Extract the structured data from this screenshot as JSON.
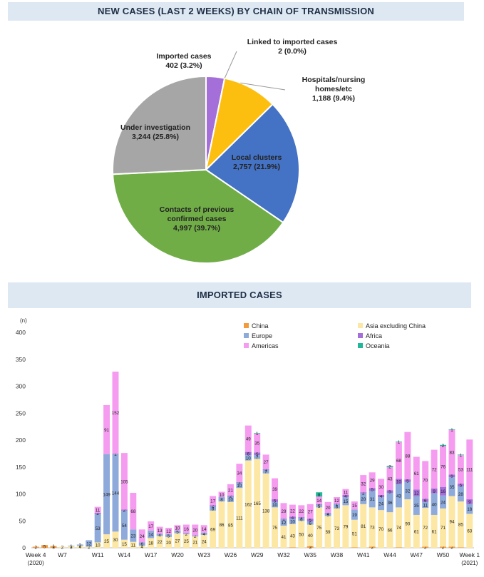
{
  "pie_title": "NEW CASES (LAST 2 WEEKS) BY CHAIN OF TRANSMISSION",
  "bar_title": "IMPORTED CASES",
  "pie_labels": {
    "imported": {
      "name": "Imported cases",
      "value": "402  (3.2%)"
    },
    "linked": {
      "name": "Linked to imported cases",
      "value": "2  (0.0%)"
    },
    "hospitals": {
      "name1": "Hospitals/nursing",
      "name2": "homes/etc",
      "value": "1,188  (9.4%)"
    },
    "local": {
      "name": "Local clusters",
      "value": "2,757  (21.9%)"
    },
    "contacts": {
      "name1": "Contacts of previous",
      "name2": "confirmed cases",
      "value": "4,997  (39.7%)"
    },
    "investigation": {
      "name": "Under investigation",
      "value": "3,244  (25.8%)"
    }
  },
  "chart_data": [
    {
      "type": "pie",
      "title": "NEW CASES (LAST 2 WEEKS) BY CHAIN OF TRANSMISSION",
      "slices": [
        {
          "label": "Imported cases",
          "value": 402,
          "percent": 3.2,
          "color": "#a46fd8"
        },
        {
          "label": "Linked to imported cases",
          "value": 2,
          "percent": 0.0,
          "color": "#a46fd8"
        },
        {
          "label": "Hospitals/nursing homes/etc",
          "value": 1188,
          "percent": 9.4,
          "color": "#fdbf0f"
        },
        {
          "label": "Local clusters",
          "value": 2757,
          "percent": 21.9,
          "color": "#4472c4"
        },
        {
          "label": "Contacts of previous confirmed cases",
          "value": 4997,
          "percent": 39.7,
          "color": "#70ad47"
        },
        {
          "label": "Under investigation",
          "value": 3244,
          "percent": 25.8,
          "color": "#a6a6a6"
        }
      ]
    },
    {
      "type": "bar",
      "stacked": true,
      "title": "IMPORTED CASES",
      "ylabel": "(n)",
      "ylim": [
        0,
        400
      ],
      "yticks": [
        0,
        50,
        100,
        150,
        200,
        250,
        300,
        350,
        400
      ],
      "x_tick_labels": [
        {
          "week": 4,
          "text": "Week 4",
          "sub": "(2020)"
        },
        {
          "week": 7,
          "text": "W7"
        },
        {
          "week": 11,
          "text": "W11"
        },
        {
          "week": 14,
          "text": "W14"
        },
        {
          "week": 17,
          "text": "W17"
        },
        {
          "week": 20,
          "text": "W20"
        },
        {
          "week": 23,
          "text": "W23"
        },
        {
          "week": 26,
          "text": "W26"
        },
        {
          "week": 29,
          "text": "W29"
        },
        {
          "week": 32,
          "text": "W32"
        },
        {
          "week": 35,
          "text": "W35"
        },
        {
          "week": 38,
          "text": "W38"
        },
        {
          "week": 41,
          "text": "W41"
        },
        {
          "week": 44,
          "text": "W44"
        },
        {
          "week": 47,
          "text": "W47"
        },
        {
          "week": 50,
          "text": "W50"
        },
        {
          "week": 53,
          "text": "Week 1",
          "sub": "(2021)"
        }
      ],
      "legend": [
        {
          "name": "China",
          "color": "#f39b3c"
        },
        {
          "name": "Asia excluding China",
          "color": "#fce8a4"
        },
        {
          "name": "Europe",
          "color": "#8eaadb"
        },
        {
          "name": "Africa",
          "color": "#a46fd8"
        },
        {
          "name": "Americas",
          "color": "#f59cf0"
        },
        {
          "name": "Oceania",
          "color": "#20b79a"
        }
      ],
      "legend_position": "top-right",
      "grid": false,
      "series_order": [
        "China",
        "Asia excluding China",
        "Europe",
        "Africa",
        "Americas",
        "Oceania"
      ],
      "weeks": [
        {
          "week": 4,
          "China": 2,
          "Asia excluding China": 0,
          "Europe": 0,
          "Africa": 0,
          "Americas": 0,
          "Oceania": 0
        },
        {
          "week": 5,
          "China": 5,
          "Asia excluding China": 0,
          "Europe": 0,
          "Africa": 0,
          "Americas": 0,
          "Oceania": 0
        },
        {
          "week": 6,
          "China": 3,
          "Asia excluding China": 1,
          "Europe": 0,
          "Africa": 0,
          "Americas": 0,
          "Oceania": 0
        },
        {
          "week": 7,
          "China": 0,
          "Asia excluding China": 2,
          "Europe": 0,
          "Africa": 0,
          "Americas": 0,
          "Oceania": 0
        },
        {
          "week": 8,
          "China": 0,
          "Asia excluding China": 3,
          "Europe": 1,
          "Africa": 0,
          "Americas": 0,
          "Oceania": 0
        },
        {
          "week": 9,
          "China": 0,
          "Asia excluding China": 4,
          "Europe": 2,
          "Africa": 0,
          "Americas": 0,
          "Oceania": 0
        },
        {
          "week": 10,
          "China": 0,
          "Asia excluding China": 2,
          "Europe": 12,
          "Africa": 0,
          "Americas": 0,
          "Oceania": 0
        },
        {
          "week": 11,
          "China": 0,
          "Asia excluding China": 10,
          "Europe": 53,
          "Africa": 2,
          "Americas": 11,
          "Oceania": 0
        },
        {
          "week": 12,
          "China": 0,
          "Asia excluding China": 25,
          "Europe": 149,
          "Africa": 0,
          "Americas": 91,
          "Oceania": 0
        },
        {
          "week": 13,
          "China": 0,
          "Asia excluding China": 30,
          "Europe": 144,
          "Africa": 1,
          "Americas": 152,
          "Oceania": 0
        },
        {
          "week": 14,
          "China": 0,
          "Asia excluding China": 15,
          "Europe": 54,
          "Africa": 2,
          "Americas": 105,
          "Oceania": 0
        },
        {
          "week": 15,
          "China": 0,
          "Asia excluding China": 11,
          "Europe": 23,
          "Africa": 0,
          "Americas": 68,
          "Oceania": 0
        },
        {
          "week": 16,
          "China": 0,
          "Asia excluding China": 4,
          "Europe": 6,
          "Africa": 0,
          "Americas": 24,
          "Oceania": 0
        },
        {
          "week": 17,
          "China": 0,
          "Asia excluding China": 18,
          "Europe": 14,
          "Africa": 0,
          "Americas": 17,
          "Oceania": 0
        },
        {
          "week": 18,
          "China": 0,
          "Asia excluding China": 22,
          "Europe": 4,
          "Africa": 0,
          "Americas": 13,
          "Oceania": 0
        },
        {
          "week": 19,
          "China": 0,
          "Asia excluding China": 20,
          "Europe": 5,
          "Africa": 0,
          "Americas": 12,
          "Oceania": 0
        },
        {
          "week": 20,
          "China": 0,
          "Asia excluding China": 27,
          "Europe": 5,
          "Africa": 0,
          "Americas": 10,
          "Oceania": 0
        },
        {
          "week": 21,
          "China": 0,
          "Asia excluding China": 25,
          "Europe": 2,
          "Africa": 0,
          "Americas": 16,
          "Oceania": 0
        },
        {
          "week": 22,
          "China": 0,
          "Asia excluding China": 21,
          "Europe": 2,
          "Africa": 0,
          "Americas": 20,
          "Oceania": 0
        },
        {
          "week": 23,
          "China": 0,
          "Asia excluding China": 24,
          "Europe": 4,
          "Africa": 0,
          "Americas": 14,
          "Oceania": 0
        },
        {
          "week": 24,
          "China": 0,
          "Asia excluding China": 69,
          "Europe": 8,
          "Africa": 2,
          "Americas": 17,
          "Oceania": 0
        },
        {
          "week": 25,
          "China": 0,
          "Asia excluding China": 86,
          "Europe": 8,
          "Africa": 0,
          "Americas": 10,
          "Oceania": 0
        },
        {
          "week": 26,
          "China": 0,
          "Asia excluding China": 85,
          "Europe": 10,
          "Africa": 2,
          "Americas": 21,
          "Oceania": 0
        },
        {
          "week": 27,
          "China": 0,
          "Asia excluding China": 111,
          "Europe": 10,
          "Africa": 1,
          "Americas": 34,
          "Oceania": 0
        },
        {
          "week": 28,
          "China": 0,
          "Asia excluding China": 162,
          "Europe": 10,
          "Africa": 6,
          "Americas": 49,
          "Oceania": 0
        },
        {
          "week": 29,
          "China": 0,
          "Asia excluding China": 165,
          "Europe": 7,
          "Africa": 5,
          "Americas": 35,
          "Oceania": 1
        },
        {
          "week": 30,
          "China": 0,
          "Asia excluding China": 138,
          "Europe": 7,
          "Africa": 1,
          "Americas": 27,
          "Oceania": 0
        },
        {
          "week": 31,
          "China": 0,
          "Asia excluding China": 75,
          "Europe": 10,
          "Africa": 5,
          "Americas": 39,
          "Oceania": 0
        },
        {
          "week": 32,
          "China": 0,
          "Asia excluding China": 41,
          "Europe": 12,
          "Africa": 1,
          "Americas": 29,
          "Oceania": 0
        },
        {
          "week": 33,
          "China": 1,
          "Asia excluding China": 43,
          "Europe": 10,
          "Africa": 4,
          "Americas": 22,
          "Oceania": 0
        },
        {
          "week": 34,
          "China": 0,
          "Asia excluding China": 50,
          "Europe": 6,
          "Africa": 1,
          "Americas": 22,
          "Oceania": 0
        },
        {
          "week": 35,
          "China": 3,
          "Asia excluding China": 40,
          "Europe": 6,
          "Africa": 5,
          "Americas": 27,
          "Oceania": 0
        },
        {
          "week": 36,
          "China": 0,
          "Asia excluding China": 75,
          "Europe": 5,
          "Africa": 1,
          "Americas": 14,
          "Oceania": 8
        },
        {
          "week": 37,
          "China": 0,
          "Asia excluding China": 59,
          "Europe": 5,
          "Africa": 1,
          "Americas": 20,
          "Oceania": 0
        },
        {
          "week": 38,
          "China": 0,
          "Asia excluding China": 73,
          "Europe": 8,
          "Africa": 1,
          "Americas": 12,
          "Oceania": 0
        },
        {
          "week": 39,
          "China": 0,
          "Asia excluding China": 79,
          "Europe": 15,
          "Africa": 4,
          "Americas": 11,
          "Oceania": 0
        },
        {
          "week": 40,
          "China": 1,
          "Asia excluding China": 51,
          "Europe": 19,
          "Africa": 0,
          "Americas": 15,
          "Oceania": 0
        },
        {
          "week": 41,
          "China": 0,
          "Asia excluding China": 81,
          "Europe": 20,
          "Africa": 2,
          "Americas": 32,
          "Oceania": 0
        },
        {
          "week": 42,
          "China": 2,
          "Asia excluding China": 73,
          "Europe": 31,
          "Africa": 5,
          "Americas": 29,
          "Oceania": 0
        },
        {
          "week": 43,
          "China": 0,
          "Asia excluding China": 70,
          "Europe": 24,
          "Africa": 4,
          "Americas": 30,
          "Oceania": 0
        },
        {
          "week": 44,
          "China": 0,
          "Asia excluding China": 66,
          "Europe": 36,
          "Africa": 5,
          "Americas": 43,
          "Oceania": 2
        },
        {
          "week": 45,
          "China": 1,
          "Asia excluding China": 74,
          "Europe": 43,
          "Africa": 10,
          "Americas": 68,
          "Oceania": 1
        },
        {
          "week": 46,
          "China": 0,
          "Asia excluding China": 90,
          "Europe": 32,
          "Africa": 5,
          "Americas": 88,
          "Oceania": 0
        },
        {
          "week": 47,
          "China": 0,
          "Asia excluding China": 61,
          "Europe": 35,
          "Africa": 12,
          "Americas": 61,
          "Oceania": 0
        },
        {
          "week": 48,
          "China": 2,
          "Asia excluding China": 72,
          "Europe": 11,
          "Africa": 6,
          "Americas": 70,
          "Oceania": 0
        },
        {
          "week": 49,
          "China": 0,
          "Asia excluding China": 61,
          "Europe": 40,
          "Africa": 9,
          "Americas": 72,
          "Oceania": 0
        },
        {
          "week": 50,
          "China": 2,
          "Asia excluding China": 71,
          "Europe": 24,
          "Africa": 16,
          "Americas": 76,
          "Oceania": 2
        },
        {
          "week": 51,
          "China": 2,
          "Asia excluding China": 94,
          "Europe": 35,
          "Africa": 5,
          "Americas": 83,
          "Oceania": 1
        },
        {
          "week": 52,
          "China": 1,
          "Asia excluding China": 85,
          "Europe": 28,
          "Africa": 5,
          "Americas": 53,
          "Oceania": 1
        },
        {
          "week": 53,
          "China": 0,
          "Asia excluding China": 63,
          "Europe": 18,
          "Africa": 9,
          "Americas": 111,
          "Oceania": 0
        }
      ]
    }
  ]
}
